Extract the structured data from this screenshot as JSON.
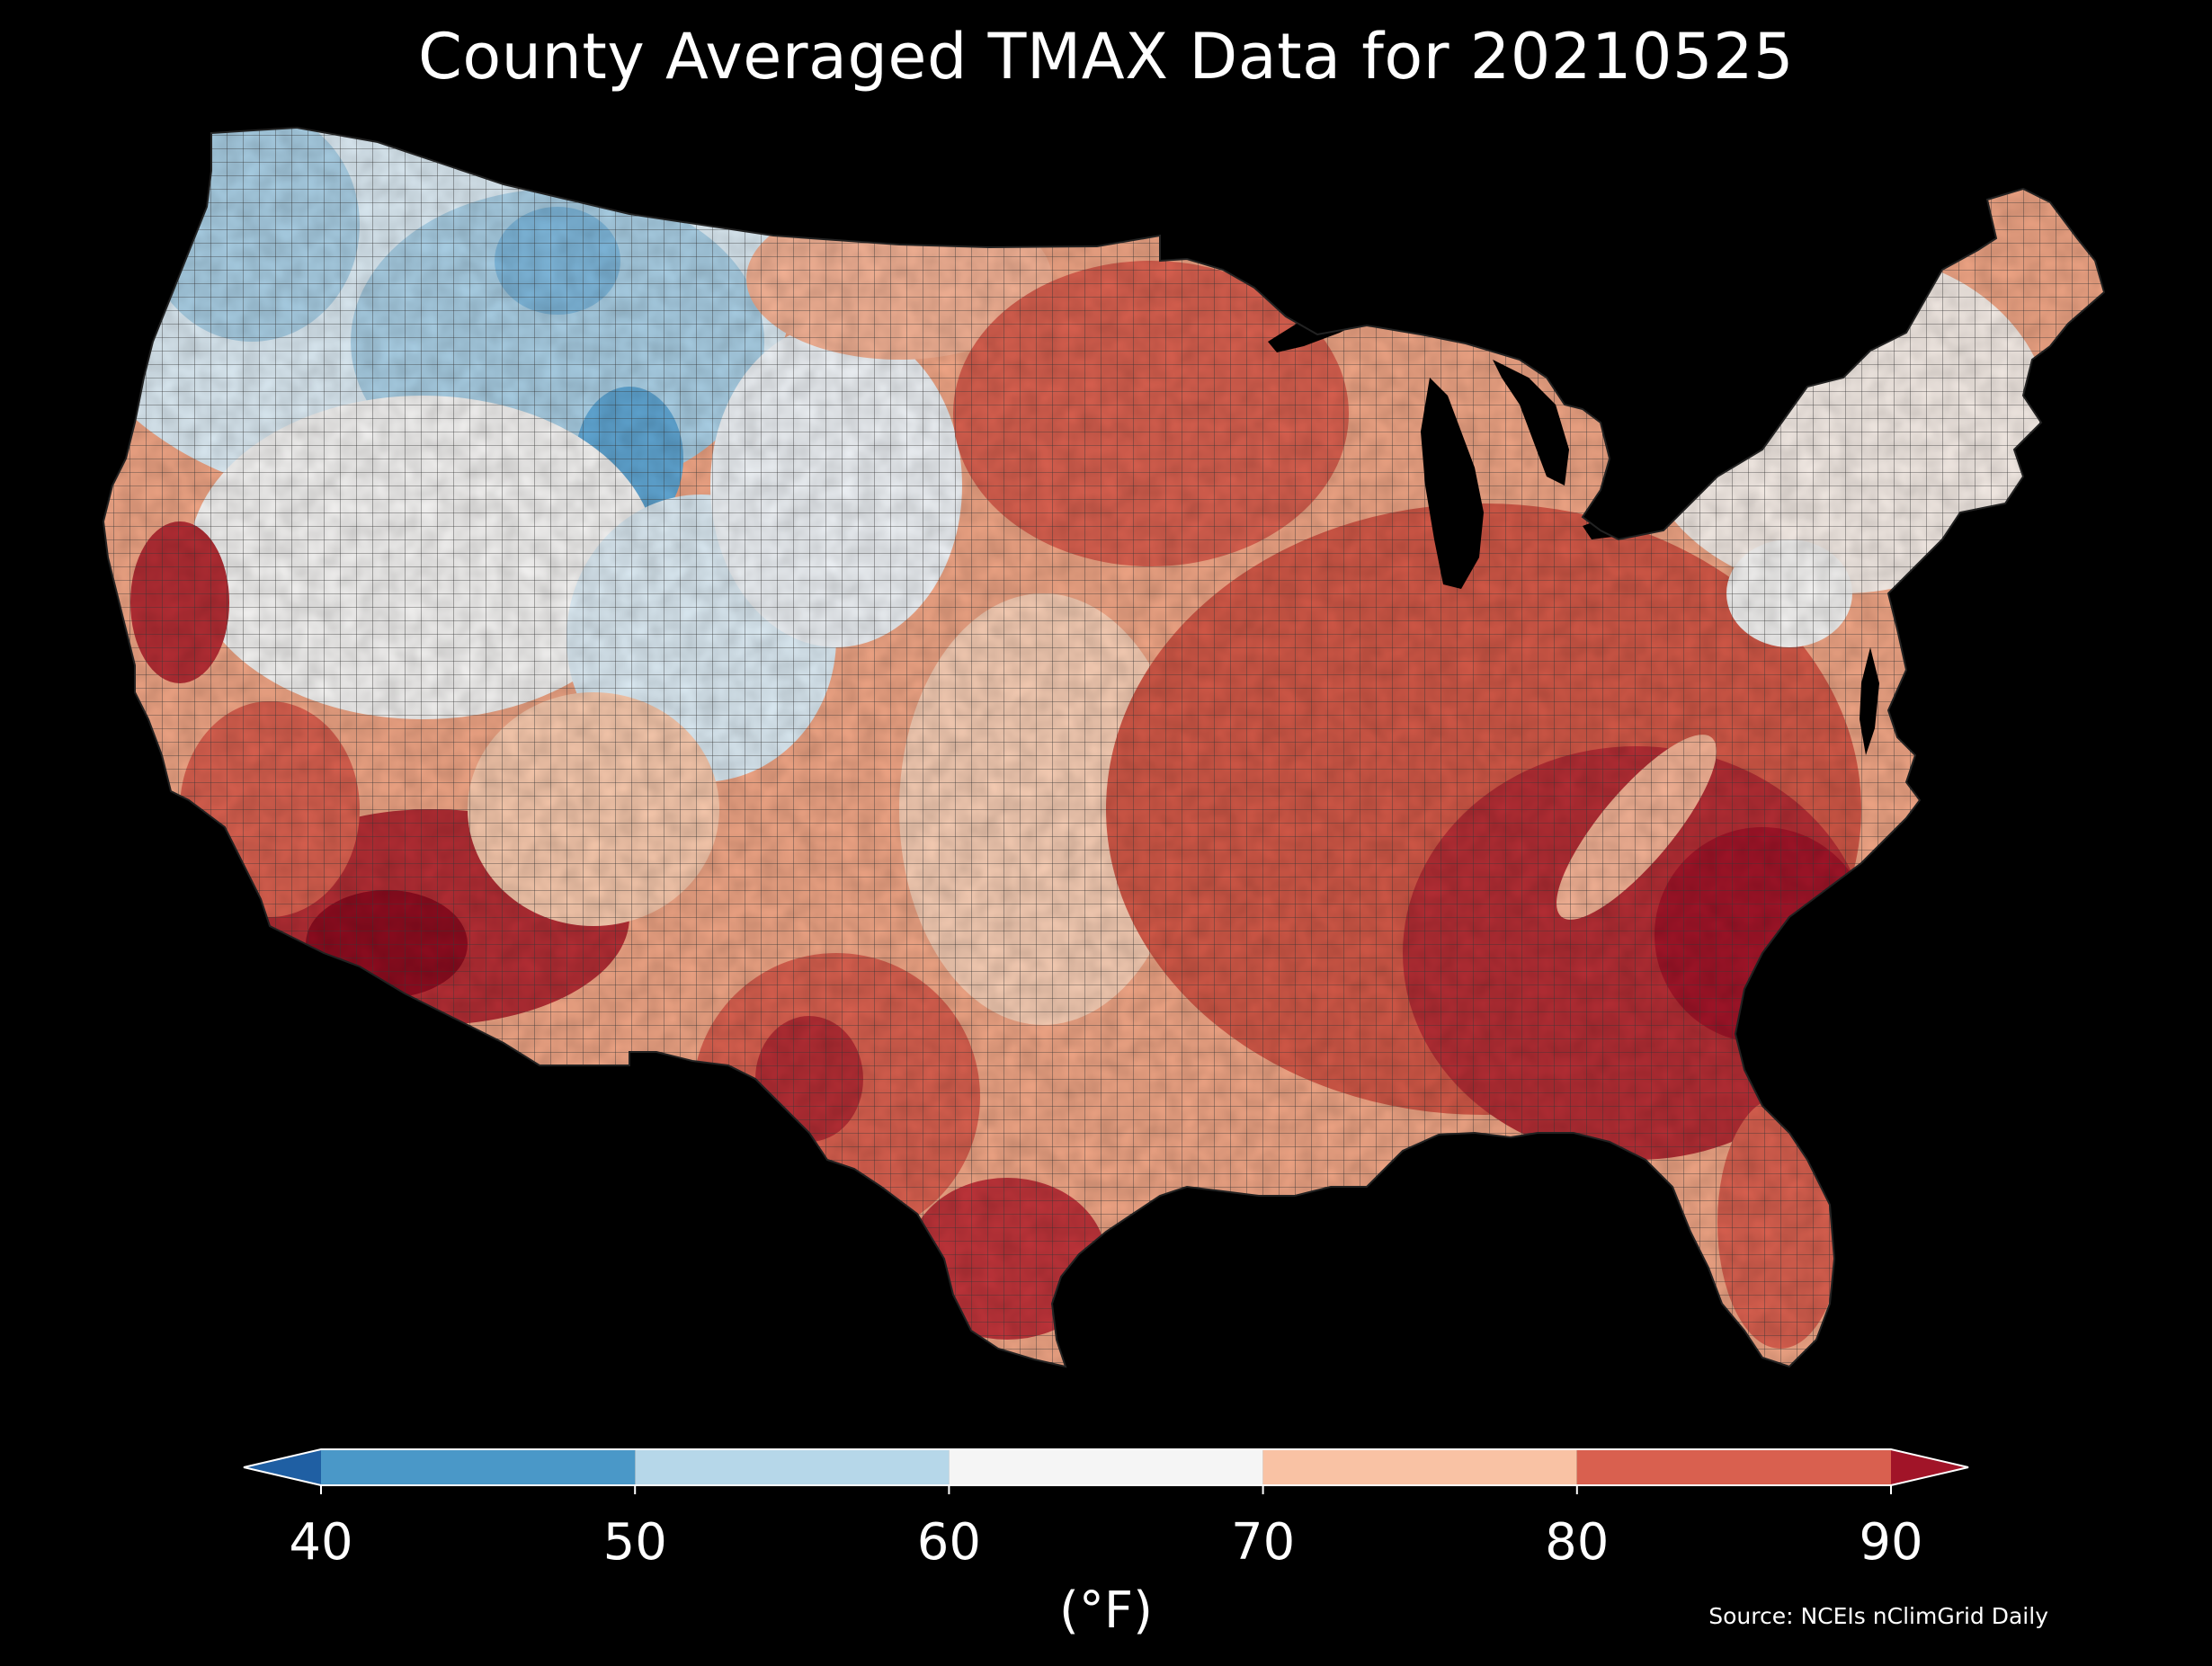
{
  "title": "County Averaged TMAX Data for 20210525",
  "source": "Source: NCEIs nClimGrid Daily",
  "colorbar": {
    "label": "(°F)",
    "ticks": [
      "40",
      "50",
      "60",
      "70",
      "80",
      "90"
    ],
    "tick_values": [
      40,
      50,
      60,
      70,
      80,
      90
    ],
    "extend": "both",
    "bins": [
      {
        "range": [
          30,
          40
        ],
        "color": "#1f5fa3",
        "role": "under"
      },
      {
        "range": [
          40,
          50
        ],
        "color": "#4a98c8"
      },
      {
        "range": [
          50,
          60
        ],
        "color": "#b6d7e9"
      },
      {
        "range": [
          60,
          70
        ],
        "color": "#f5f5f5"
      },
      {
        "range": [
          70,
          80
        ],
        "color": "#f9c2a4"
      },
      {
        "range": [
          80,
          90
        ],
        "color": "#d9604f"
      },
      {
        "range": [
          90,
          100
        ],
        "color": "#a11428",
        "role": "over"
      }
    ]
  },
  "map": {
    "region": "contiguous-united-states",
    "unit": "county",
    "variable": "TMAX",
    "date": "20210525",
    "background": "#000000",
    "water_color": "#000000",
    "boundary_color": "#333333"
  }
}
